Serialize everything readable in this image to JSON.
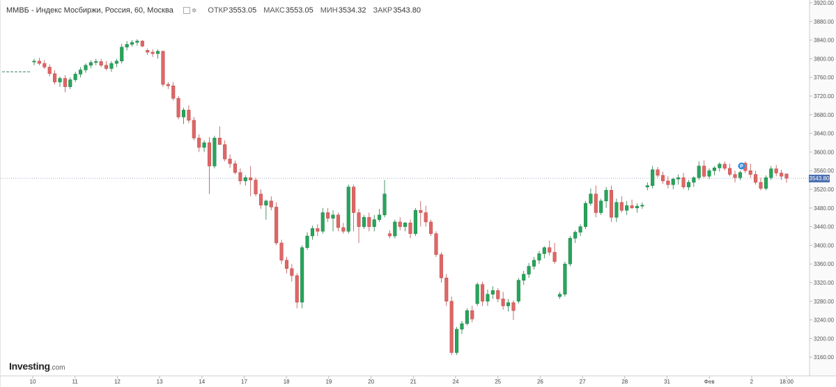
{
  "header": {
    "title": "ММВБ - Индекс Мосбиржи, Россия, 60, Москва",
    "open_label": "ОТКР",
    "open_value": "3553.05",
    "high_label": "МАКС",
    "high_value": "3553.05",
    "low_label": "МИН",
    "low_value": "3534.32",
    "close_label": "ЗАКР",
    "close_value": "3543.80"
  },
  "logo": {
    "brand": "Investing",
    "domain": ".com"
  },
  "current_price_label": "3543.80",
  "event_marker": "P",
  "colors": {
    "bull": "#26a65b",
    "bear": "#e06666",
    "price_tag": "#4a6fb2",
    "event": "#2f8fe0"
  },
  "chart_data": {
    "type": "candlestick",
    "ylim": [
      3120,
      3920
    ],
    "y_ticks": [
      3160,
      3200,
      3240,
      3280,
      3320,
      3360,
      3400,
      3440,
      3480,
      3520,
      3560,
      3600,
      3640,
      3680,
      3720,
      3760,
      3800,
      3840,
      3880,
      3920
    ],
    "y_tick_labels": [
      "3160.00",
      "3200.00",
      "3240.00",
      "3280.00",
      "3320.00",
      "3360.00",
      "3400.00",
      "3440.00",
      "3480.00",
      "3520.00",
      "3560.00",
      "3600.00",
      "3640.00",
      "3680.00",
      "3720.00",
      "3760.00",
      "3800.00",
      "3840.00",
      "3880.00",
      "3920.00"
    ],
    "x_labels": [
      "10",
      "11",
      "12",
      "13",
      "14",
      "17",
      "18",
      "19",
      "20",
      "21",
      "24",
      "25",
      "26",
      "27",
      "28",
      "31",
      "Фев",
      "2",
      "18:00"
    ],
    "current_price": 3543.8,
    "previous_level": 3772,
    "candles": [
      [
        3793,
        3800,
        3786,
        3795
      ],
      [
        3795,
        3802,
        3786,
        3790
      ],
      [
        3790,
        3797,
        3778,
        3782
      ],
      [
        3782,
        3788,
        3762,
        3768
      ],
      [
        3768,
        3775,
        3745,
        3750
      ],
      [
        3750,
        3762,
        3740,
        3758
      ],
      [
        3758,
        3765,
        3728,
        3740
      ],
      [
        3740,
        3760,
        3735,
        3755
      ],
      [
        3755,
        3772,
        3750,
        3767
      ],
      [
        3767,
        3782,
        3760,
        3776
      ],
      [
        3776,
        3790,
        3770,
        3786
      ],
      [
        3786,
        3797,
        3780,
        3792
      ],
      [
        3792,
        3800,
        3786,
        3794
      ],
      [
        3794,
        3800,
        3782,
        3786
      ],
      [
        3786,
        3795,
        3775,
        3779
      ],
      [
        3779,
        3795,
        3772,
        3790
      ],
      [
        3790,
        3800,
        3782,
        3795
      ],
      [
        3795,
        3832,
        3790,
        3825
      ],
      [
        3825,
        3838,
        3818,
        3831
      ],
      [
        3831,
        3840,
        3826,
        3835
      ],
      [
        3835,
        3842,
        3828,
        3838
      ],
      [
        3838,
        3840,
        3825,
        3827
      ],
      [
        3818,
        3822,
        3808,
        3814
      ],
      [
        3814,
        3820,
        3804,
        3811
      ],
      [
        3811,
        3820,
        3800,
        3816
      ],
      [
        3816,
        3818,
        3740,
        3745
      ],
      [
        3745,
        3750,
        3735,
        3742
      ],
      [
        3742,
        3750,
        3710,
        3715
      ],
      [
        3715,
        3720,
        3670,
        3675
      ],
      [
        3675,
        3695,
        3660,
        3690
      ],
      [
        3690,
        3700,
        3662,
        3668
      ],
      [
        3668,
        3675,
        3625,
        3630
      ],
      [
        3630,
        3638,
        3600,
        3610
      ],
      [
        3610,
        3625,
        3600,
        3620
      ],
      [
        3620,
        3632,
        3510,
        3570
      ],
      [
        3570,
        3635,
        3565,
        3630
      ],
      [
        3630,
        3655,
        3620,
        3616
      ],
      [
        3616,
        3625,
        3580,
        3585
      ],
      [
        3585,
        3595,
        3566,
        3575
      ],
      [
        3575,
        3582,
        3552,
        3556
      ],
      [
        3556,
        3565,
        3530,
        3538
      ],
      [
        3538,
        3550,
        3528,
        3545
      ],
      [
        3545,
        3570,
        3505,
        3540
      ],
      [
        3540,
        3545,
        3505,
        3510
      ],
      [
        3510,
        3520,
        3478,
        3486
      ],
      [
        3486,
        3498,
        3455,
        3495
      ],
      [
        3495,
        3505,
        3475,
        3482
      ],
      [
        3482,
        3492,
        3400,
        3405
      ],
      [
        3405,
        3412,
        3360,
        3368
      ],
      [
        3368,
        3375,
        3340,
        3350
      ],
      [
        3350,
        3360,
        3322,
        3335
      ],
      [
        3335,
        3340,
        3265,
        3278
      ],
      [
        3278,
        3400,
        3265,
        3395
      ],
      [
        3395,
        3428,
        3390,
        3420
      ],
      [
        3420,
        3442,
        3412,
        3436
      ],
      [
        3436,
        3445,
        3420,
        3430
      ],
      [
        3430,
        3480,
        3425,
        3470
      ],
      [
        3470,
        3480,
        3450,
        3458
      ],
      [
        3458,
        3475,
        3430,
        3465
      ],
      [
        3465,
        3470,
        3430,
        3438
      ],
      [
        3438,
        3448,
        3425,
        3430
      ],
      [
        3430,
        3530,
        3425,
        3525
      ],
      [
        3525,
        3530,
        3430,
        3470
      ],
      [
        3470,
        3478,
        3405,
        3440
      ],
      [
        3440,
        3465,
        3435,
        3460
      ],
      [
        3460,
        3470,
        3430,
        3440
      ],
      [
        3440,
        3465,
        3430,
        3455
      ],
      [
        3455,
        3478,
        3450,
        3465
      ],
      [
        3465,
        3540,
        3460,
        3510
      ],
      [
        3425,
        3432,
        3415,
        3420
      ],
      [
        3420,
        3455,
        3415,
        3450
      ],
      [
        3450,
        3460,
        3432,
        3440
      ],
      [
        3440,
        3450,
        3430,
        3448
      ],
      [
        3448,
        3455,
        3415,
        3425
      ],
      [
        3425,
        3480,
        3420,
        3475
      ],
      [
        3475,
        3495,
        3440,
        3470
      ],
      [
        3470,
        3485,
        3440,
        3450
      ],
      [
        3450,
        3455,
        3420,
        3425
      ],
      [
        3425,
        3430,
        3375,
        3380
      ],
      [
        3380,
        3385,
        3320,
        3330
      ],
      [
        3330,
        3338,
        3270,
        3280
      ],
      [
        3280,
        3290,
        3165,
        3170
      ],
      [
        3170,
        3225,
        3165,
        3220
      ],
      [
        3220,
        3238,
        3210,
        3232
      ],
      [
        3232,
        3265,
        3228,
        3260
      ],
      [
        3260,
        3270,
        3235,
        3242
      ],
      [
        3275,
        3320,
        3270,
        3316
      ],
      [
        3316,
        3322,
        3270,
        3280
      ],
      [
        3280,
        3305,
        3270,
        3295
      ],
      [
        3295,
        3312,
        3285,
        3303
      ],
      [
        3303,
        3308,
        3278,
        3285
      ],
      [
        3285,
        3300,
        3262,
        3270
      ],
      [
        3270,
        3285,
        3258,
        3277
      ],
      [
        3277,
        3282,
        3240,
        3260
      ],
      [
        3280,
        3330,
        3275,
        3325
      ],
      [
        3325,
        3345,
        3315,
        3338
      ],
      [
        3338,
        3362,
        3330,
        3355
      ],
      [
        3355,
        3375,
        3348,
        3368
      ],
      [
        3368,
        3388,
        3360,
        3382
      ],
      [
        3382,
        3398,
        3372,
        3395
      ],
      [
        3395,
        3410,
        3378,
        3385
      ],
      [
        3385,
        3405,
        3360,
        3365
      ],
      [
        3290,
        3300,
        3285,
        3295
      ],
      [
        3295,
        3365,
        3290,
        3360
      ],
      [
        3360,
        3420,
        3355,
        3415
      ],
      [
        3415,
        3432,
        3405,
        3428
      ],
      [
        3428,
        3445,
        3420,
        3440
      ],
      [
        3440,
        3495,
        3435,
        3490
      ],
      [
        3490,
        3522,
        3485,
        3510
      ],
      [
        3510,
        3528,
        3460,
        3470
      ],
      [
        3470,
        3500,
        3465,
        3495
      ],
      [
        3495,
        3525,
        3480,
        3518
      ],
      [
        3518,
        3528,
        3450,
        3460
      ],
      [
        3460,
        3500,
        3450,
        3492
      ],
      [
        3492,
        3505,
        3470,
        3475
      ],
      [
        3475,
        3495,
        3465,
        3485
      ],
      [
        3485,
        3498,
        3478,
        3480
      ],
      [
        3480,
        3490,
        3470,
        3484
      ],
      [
        3484,
        3492,
        3478,
        3486
      ],
      [
        3525,
        3535,
        3518,
        3528
      ],
      [
        3528,
        3570,
        3522,
        3562
      ],
      [
        3562,
        3568,
        3545,
        3550
      ],
      [
        3550,
        3558,
        3532,
        3538
      ],
      [
        3538,
        3548,
        3522,
        3530
      ],
      [
        3530,
        3545,
        3520,
        3542
      ],
      [
        3542,
        3552,
        3530,
        3545
      ],
      [
        3545,
        3555,
        3520,
        3525
      ],
      [
        3525,
        3540,
        3518,
        3535
      ],
      [
        3535,
        3548,
        3525,
        3545
      ],
      [
        3545,
        3580,
        3540,
        3570
      ],
      [
        3570,
        3582,
        3545,
        3548
      ],
      [
        3548,
        3565,
        3542,
        3560
      ],
      [
        3560,
        3570,
        3550,
        3566
      ],
      [
        3566,
        3578,
        3558,
        3574
      ],
      [
        3574,
        3580,
        3560,
        3565
      ],
      [
        3565,
        3575,
        3548,
        3552
      ],
      [
        3552,
        3560,
        3535,
        3545
      ],
      [
        3545,
        3560,
        3540,
        3556
      ],
      [
        3576,
        3580,
        3555,
        3560
      ],
      [
        3560,
        3575,
        3545,
        3552
      ],
      [
        3552,
        3560,
        3530,
        3535
      ],
      [
        3535,
        3545,
        3518,
        3522
      ],
      [
        3522,
        3550,
        3518,
        3545
      ],
      [
        3545,
        3570,
        3540,
        3564
      ],
      [
        3564,
        3572,
        3548,
        3555
      ],
      [
        3555,
        3562,
        3540,
        3548
      ],
      [
        3553.05,
        3553.05,
        3534.32,
        3543.8
      ]
    ]
  }
}
